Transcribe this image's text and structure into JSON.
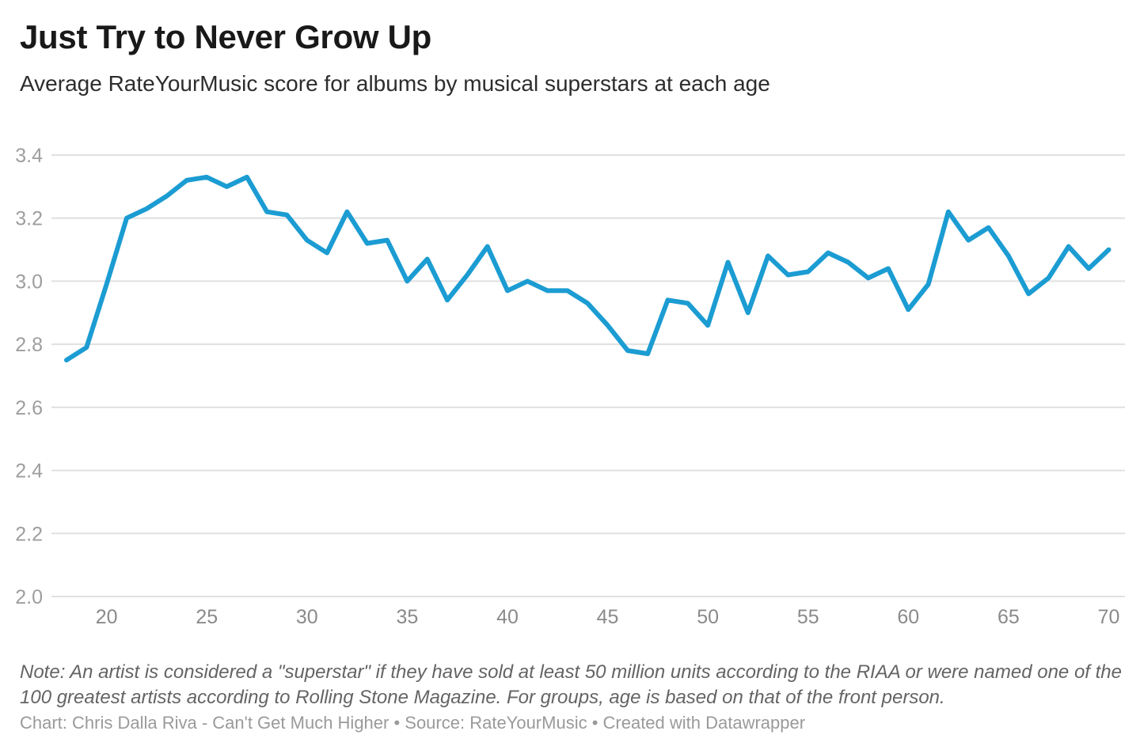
{
  "header": {
    "title": "Just Try to Never Grow Up",
    "subtitle": "Average RateYourMusic score for albums by musical superstars at each age"
  },
  "chart_data": {
    "type": "line",
    "title": "Just Try to Never Grow Up",
    "subtitle": "Average RateYourMusic score for albums by musical superstars at each age",
    "series_name": "Average RateYourMusic album score at each age",
    "x": [
      18,
      19,
      20,
      21,
      22,
      23,
      24,
      25,
      26,
      27,
      28,
      29,
      30,
      31,
      32,
      33,
      34,
      35,
      36,
      37,
      38,
      39,
      40,
      41,
      42,
      43,
      44,
      45,
      46,
      47,
      48,
      49,
      50,
      51,
      52,
      53,
      54,
      55,
      56,
      57,
      58,
      59,
      60,
      61,
      62,
      63,
      64,
      65,
      66,
      67,
      68,
      69,
      70
    ],
    "values": [
      2.75,
      2.79,
      2.99,
      3.2,
      3.23,
      3.27,
      3.32,
      3.33,
      3.3,
      3.33,
      3.22,
      3.21,
      3.13,
      3.09,
      3.22,
      3.12,
      3.13,
      3.0,
      3.07,
      2.94,
      3.02,
      3.11,
      2.97,
      3.0,
      2.97,
      2.97,
      2.93,
      2.86,
      2.78,
      2.77,
      2.94,
      2.93,
      2.86,
      3.06,
      2.9,
      3.08,
      3.02,
      3.03,
      3.09,
      3.06,
      3.01,
      3.04,
      2.91,
      2.99,
      3.22,
      3.13,
      3.17,
      3.08,
      2.96,
      3.01,
      3.11,
      3.04,
      3.1
    ],
    "xlabel": "",
    "ylabel": "",
    "xlim": [
      18,
      70
    ],
    "ylim": [
      2.0,
      3.4
    ],
    "x_ticks": [
      "20",
      "25",
      "30",
      "35",
      "40",
      "45",
      "50",
      "55",
      "60",
      "65",
      "70"
    ],
    "y_ticks": [
      "3.4",
      "3.2",
      "3.0",
      "2.8",
      "2.6",
      "2.4",
      "2.2",
      "2.0"
    ],
    "grid": "horizontal-only",
    "legend": "none",
    "colors": {
      "line": "#1b9cd2",
      "grid": "#e0e0e0",
      "y_tick_label": "#9e9e9e",
      "x_tick_label": "#8a8a8a"
    }
  },
  "footer": {
    "note": "Note: An artist is considered a \"superstar\" if they have sold at least 50 million units according to the RIAA or were named one of the 100 greatest artists according to Rolling Stone Magazine. For groups, age is based on that of the front person.",
    "credit": "Chart: Chris Dalla Riva - Can't Get Much Higher • Source: RateYourMusic • Created with Datawrapper"
  }
}
